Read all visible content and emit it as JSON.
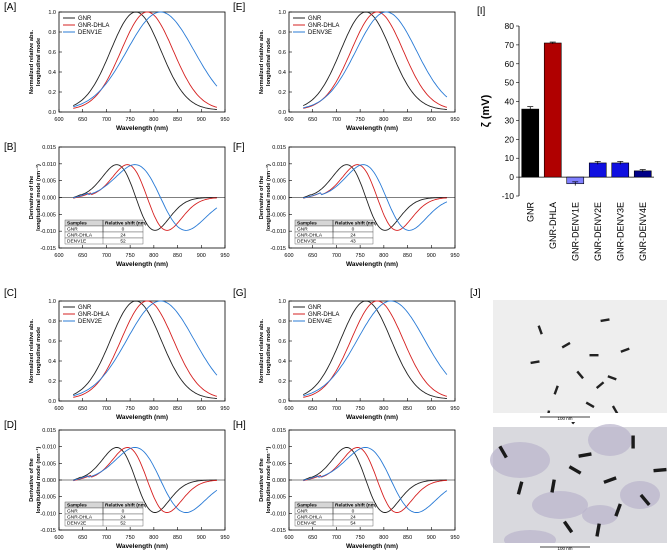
{
  "colors": {
    "gnr": "#222222",
    "dhla": "#d62020",
    "denv": "#2a7bd6",
    "bar_black": "#000000",
    "bar_red": "#b00000",
    "bar_light": "#8080ff",
    "bar_blue": "#1010e0",
    "bar_dark": "#000088"
  },
  "chart_data": [
    {
      "id": "A",
      "type": "line",
      "label": "[A]",
      "xlabel": "Wavelength (nm)",
      "ylabel": "Normalized relative abs. longitudinal mode",
      "xlim": [
        600,
        950
      ],
      "ylim": [
        0,
        1
      ],
      "xticks": [
        "600",
        "650",
        "700",
        "750",
        "800",
        "850",
        "900",
        "950"
      ],
      "yticks": [
        "0.0",
        "0.2",
        "0.4",
        "0.6",
        "0.8",
        "1.0"
      ],
      "legend": [
        "GNR",
        "GNR-DHLA",
        "DENV1E"
      ],
      "series": [
        {
          "name": "GNR",
          "peak": 762,
          "width": 60
        },
        {
          "name": "GNR-DHLA",
          "peak": 786,
          "width": 62
        },
        {
          "name": "DENV1E",
          "peak": 814,
          "width": 80
        }
      ]
    },
    {
      "id": "B",
      "type": "line",
      "label": "[B]",
      "xlabel": "Wavelength (nm)",
      "ylabel": "Derivative of the longitudinal mode (nm⁻¹)",
      "xlim": [
        600,
        950
      ],
      "ylim": [
        -0.015,
        0.015
      ],
      "xticks": [
        "600",
        "650",
        "700",
        "750",
        "800",
        "850",
        "900",
        "950"
      ],
      "yticks": [
        "-0.015",
        "-0.010",
        "-0.005",
        "0.000",
        "0.005",
        "0.010",
        "0.015"
      ],
      "table": {
        "headers": [
          "Samples",
          "Relative shift (nm)"
        ],
        "rows": [
          [
            "GNR",
            "0"
          ],
          [
            "GNR-DHLA",
            "24"
          ],
          [
            "DENV1E",
            "52"
          ]
        ]
      }
    },
    {
      "id": "C",
      "type": "line",
      "label": "[C]",
      "xlabel": "Wavelength (nm)",
      "ylabel": "Normalized relative abs. longitudinal mode",
      "xlim": [
        600,
        950
      ],
      "ylim": [
        0,
        1
      ],
      "xticks": [
        "600",
        "650",
        "700",
        "750",
        "800",
        "850",
        "900",
        "950"
      ],
      "yticks": [
        "0.0",
        "0.2",
        "0.4",
        "0.6",
        "0.8",
        "1.0"
      ],
      "legend": [
        "GNR",
        "GNR-DHLA",
        "DENV2E"
      ],
      "series": [
        {
          "name": "GNR",
          "peak": 762,
          "width": 60
        },
        {
          "name": "GNR-DHLA",
          "peak": 786,
          "width": 62
        },
        {
          "name": "DENV2E",
          "peak": 814,
          "width": 80
        }
      ]
    },
    {
      "id": "D",
      "type": "line",
      "label": "[D]",
      "xlabel": "Wavelength (nm)",
      "ylabel": "Derivative of the longitudinal mode (nm⁻¹)",
      "xlim": [
        600,
        950
      ],
      "ylim": [
        -0.015,
        0.015
      ],
      "xticks": [
        "600",
        "650",
        "700",
        "750",
        "800",
        "850",
        "900",
        "950"
      ],
      "yticks": [
        "-0.015",
        "-0.010",
        "-0.005",
        "0.000",
        "0.005",
        "0.010",
        "0.015"
      ],
      "table": {
        "headers": [
          "Samples",
          "Relative shift (nm)"
        ],
        "rows": [
          [
            "GNR",
            "0"
          ],
          [
            "GNR-DHLA",
            "24"
          ],
          [
            "DENV2E",
            "52"
          ]
        ]
      }
    },
    {
      "id": "E",
      "type": "line",
      "label": "[E]",
      "xlabel": "Wavelength (nm)",
      "ylabel": "Normalized relative abs. longitudinal mode",
      "xlim": [
        600,
        950
      ],
      "ylim": [
        0,
        1
      ],
      "xticks": [
        "600",
        "650",
        "700",
        "750",
        "800",
        "850",
        "900",
        "950"
      ],
      "yticks": [
        "0.0",
        "0.2",
        "0.4",
        "0.6",
        "0.8",
        "1.0"
      ],
      "legend": [
        "GNR",
        "GNR-DHLA",
        "DENV3E"
      ],
      "series": [
        {
          "name": "GNR",
          "peak": 762,
          "width": 60
        },
        {
          "name": "GNR-DHLA",
          "peak": 786,
          "width": 62
        },
        {
          "name": "DENV3E",
          "peak": 805,
          "width": 72
        }
      ]
    },
    {
      "id": "F",
      "type": "line",
      "label": "[F]",
      "xlabel": "Wavelength (nm)",
      "ylabel": "Derivative of the longitudinal mode (nm⁻¹)",
      "xlim": [
        600,
        950
      ],
      "ylim": [
        -0.015,
        0.015
      ],
      "xticks": [
        "600",
        "650",
        "700",
        "750",
        "800",
        "850",
        "900",
        "950"
      ],
      "yticks": [
        "-0.015",
        "-0.010",
        "-0.005",
        "0.000",
        "0.005",
        "0.010",
        "0.015"
      ],
      "table": {
        "headers": [
          "Samples",
          "Relative shift (nm)"
        ],
        "rows": [
          [
            "GNR",
            "0"
          ],
          [
            "GNR-DHLA",
            "24"
          ],
          [
            "DENV3E",
            "43"
          ]
        ]
      }
    },
    {
      "id": "G",
      "type": "line",
      "label": "[G]",
      "xlabel": "Wavelength (nm)",
      "ylabel": "Normalized relative abs. longitudinal mode",
      "xlim": [
        600,
        950
      ],
      "ylim": [
        0,
        1
      ],
      "xticks": [
        "600",
        "650",
        "700",
        "750",
        "800",
        "850",
        "900",
        "950"
      ],
      "yticks": [
        "0.0",
        "0.2",
        "0.4",
        "0.6",
        "0.8",
        "1.0"
      ],
      "legend": [
        "GNR",
        "GNR-DHLA",
        "DENV4E"
      ],
      "series": [
        {
          "name": "GNR",
          "peak": 762,
          "width": 60
        },
        {
          "name": "GNR-DHLA",
          "peak": 786,
          "width": 62
        },
        {
          "name": "DENV4E",
          "peak": 815,
          "width": 80
        }
      ]
    },
    {
      "id": "H",
      "type": "line",
      "label": "[H]",
      "xlabel": "Wavelength (nm)",
      "ylabel": "Derivative of the longitudinal mode (nm⁻¹)",
      "xlim": [
        600,
        950
      ],
      "ylim": [
        -0.015,
        0.015
      ],
      "xticks": [
        "600",
        "650",
        "700",
        "750",
        "800",
        "850",
        "900",
        "950"
      ],
      "yticks": [
        "-0.015",
        "-0.010",
        "-0.005",
        "0.000",
        "0.005",
        "0.010",
        "0.015"
      ],
      "table": {
        "headers": [
          "Samples",
          "Relative shift (nm)"
        ],
        "rows": [
          [
            "GNR",
            "0"
          ],
          [
            "GNR-DHLA",
            "24"
          ],
          [
            "DENV4E",
            "54"
          ]
        ]
      }
    },
    {
      "id": "I",
      "type": "bar",
      "label": "[I]",
      "ylabel": "ζ (mV)",
      "ylim": [
        -10,
        80
      ],
      "yticks": [
        "-10",
        "0",
        "10",
        "20",
        "30",
        "40",
        "50",
        "60",
        "70",
        "80"
      ],
      "categories": [
        "GNR",
        "GNR-DHLA",
        "GNR-DENV1E",
        "GNR-DENV2E",
        "GNR-DENV3E",
        "GNR-DENV4E"
      ],
      "values": [
        36,
        71,
        -3.5,
        7.5,
        7.5,
        3.3
      ],
      "errors": [
        1.3,
        0.5,
        1.0,
        0.8,
        0.8,
        0.7
      ]
    }
  ],
  "tem": {
    "label": "[J]",
    "scale_top": "100 nm",
    "scale_bottom": "100 nm"
  }
}
